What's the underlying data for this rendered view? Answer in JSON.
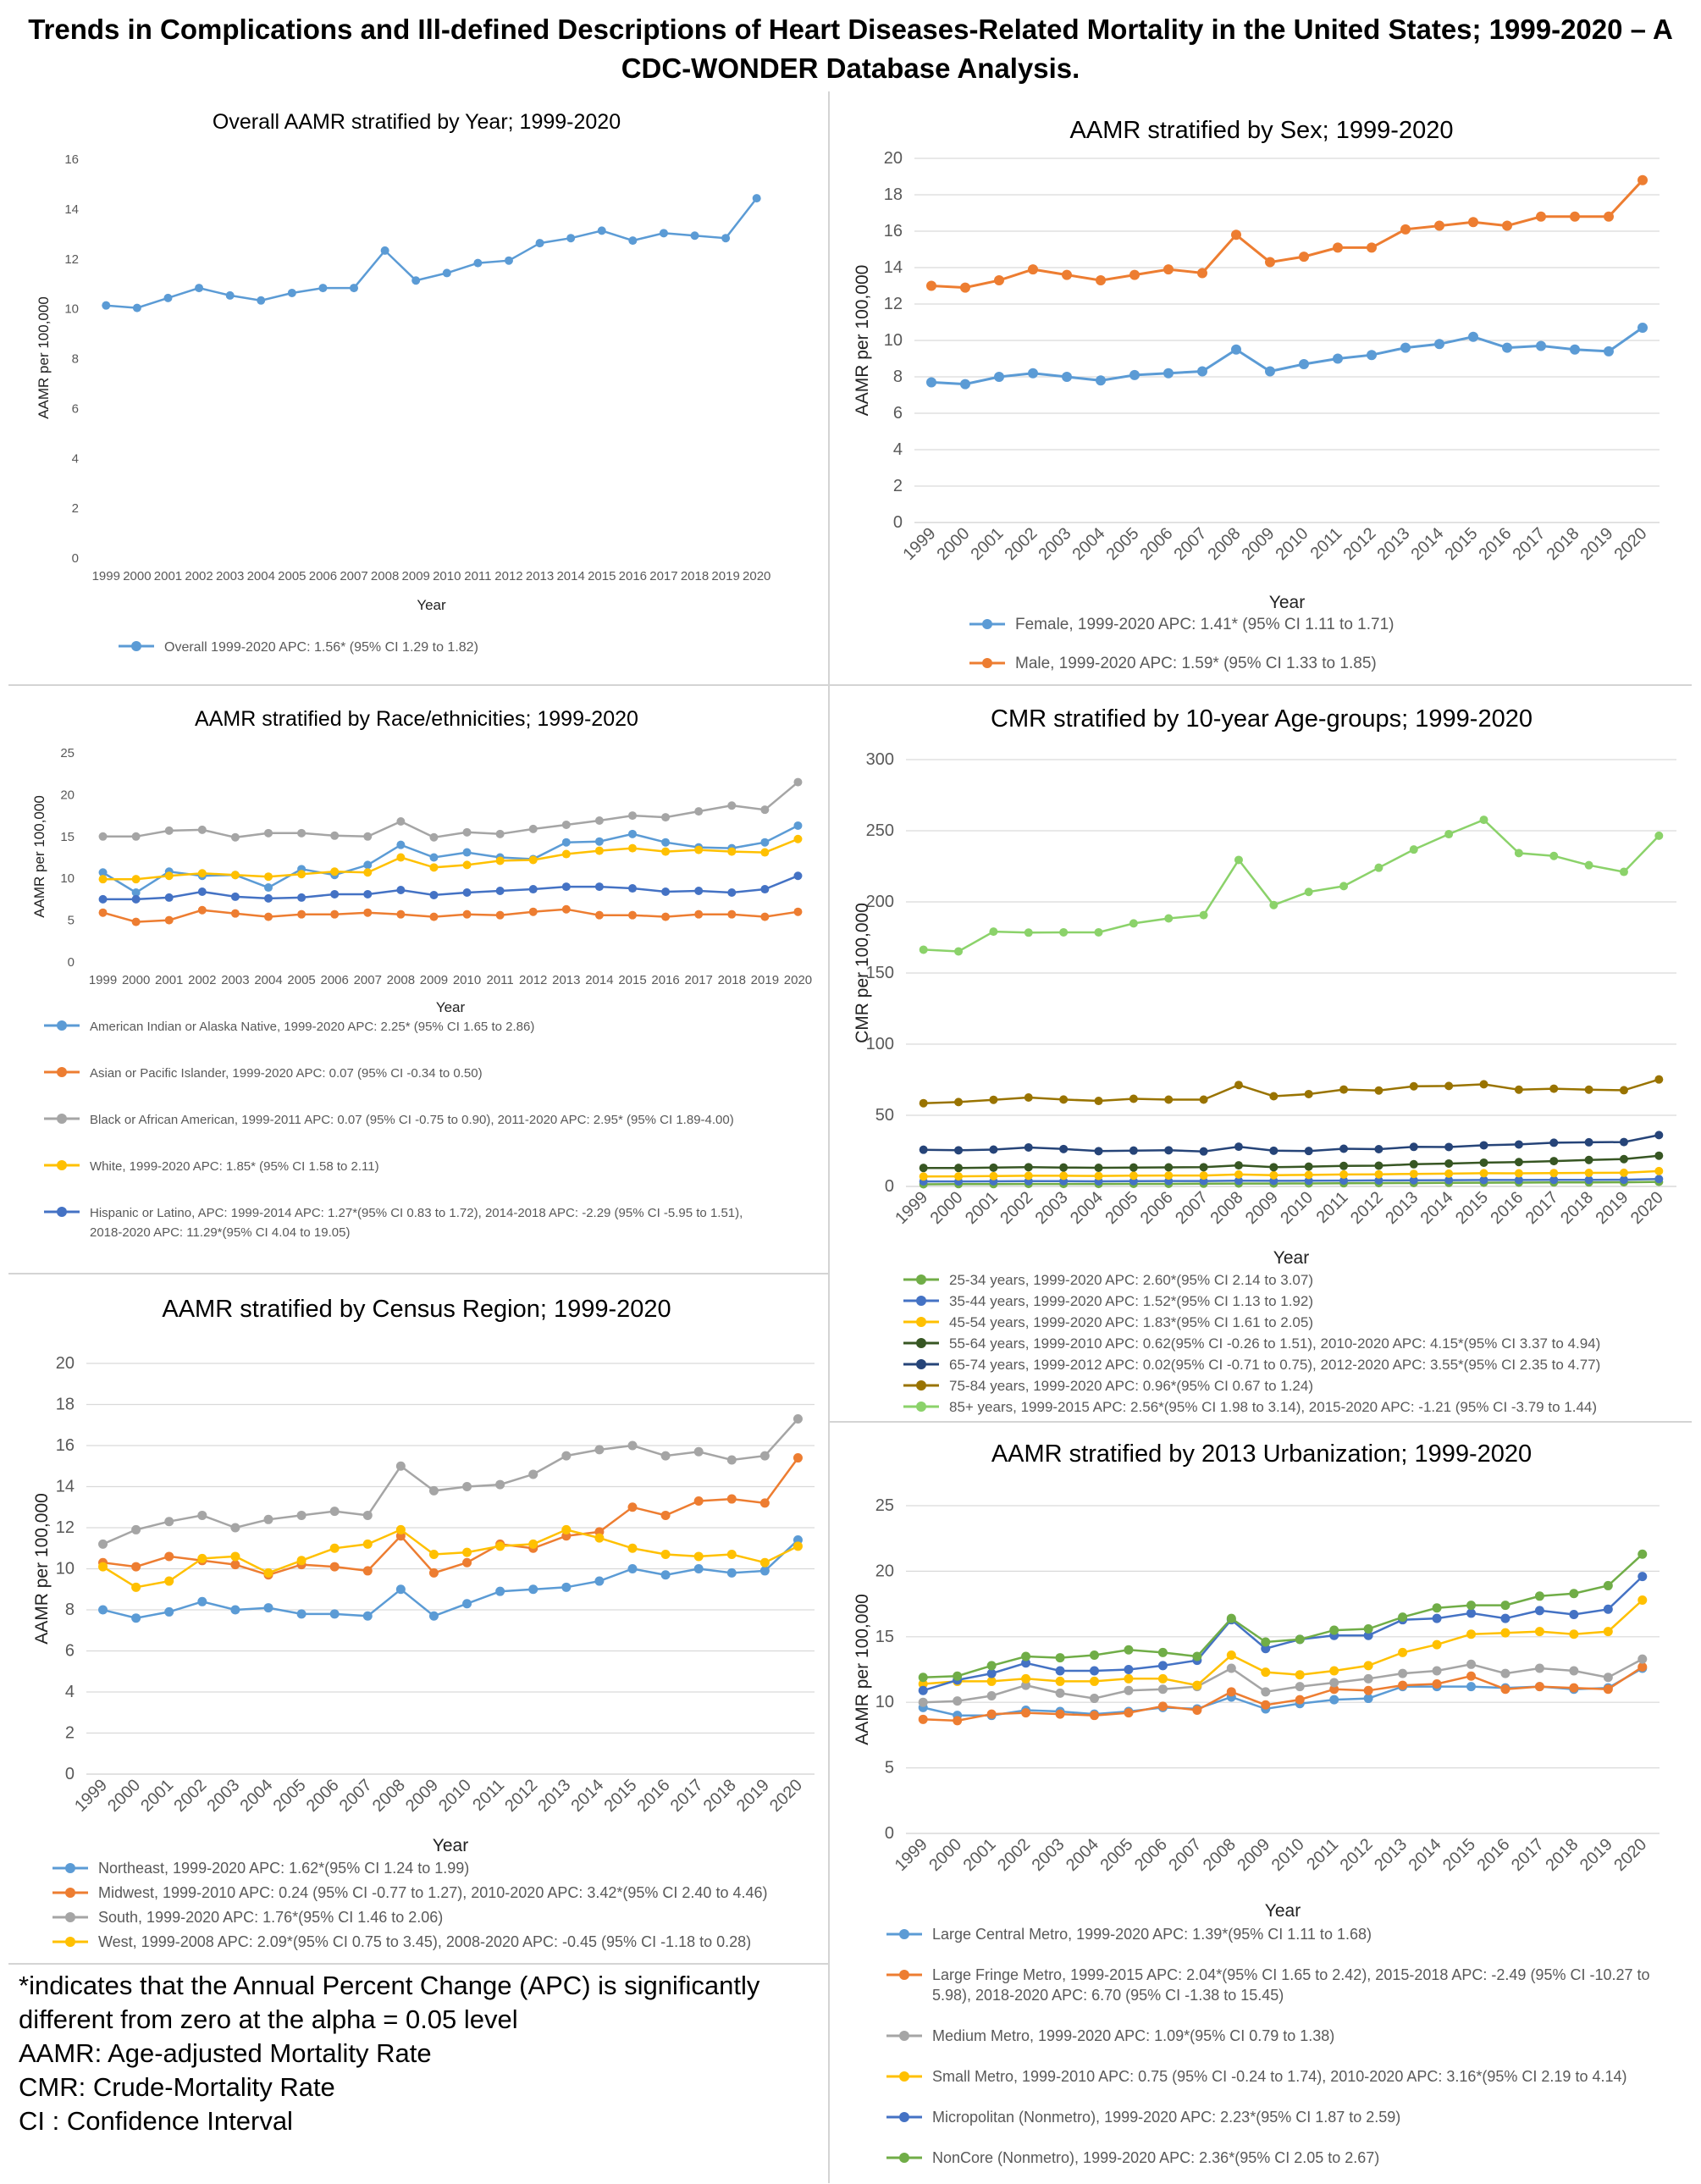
{
  "main_title": [
    "Trends in Complications and Ill-defined Descriptions of Heart Diseases-Related Mortality in the United States; 1999-2020 – A",
    "CDC-WONDER Database Analysis."
  ],
  "colors": {
    "blue": "#5b9bd5",
    "orange": "#ed7d31",
    "gray": "#a5a5a5",
    "gold": "#ffc000",
    "dblue": "#4472c4",
    "green": "#70ad47",
    "dgreen": "#375623",
    "navy": "#264478",
    "brown": "#997300",
    "lgreen": "#8bd26a",
    "grid": "#d9d9d9",
    "text": "#595959"
  },
  "notes": [
    "*indicates that the Annual Percent Change (APC) is significantly",
    "different from zero at the alpha = 0.05 level",
    "AAMR: Age-adjusted Mortality Rate",
    "CMR: Crude-Mortality Rate",
    "CI : Confidence Interval"
  ],
  "chart_data": [
    {
      "id": "overall",
      "type": "line",
      "title": "Overall AAMR stratified by Year; 1999-2020",
      "xlabel": "Year",
      "ylabel": "AAMR per 100,000",
      "ylim": [
        0,
        16
      ],
      "ystep": 2,
      "grid": false,
      "x": [
        "1999",
        "2000",
        "2001",
        "2002",
        "2003",
        "2004",
        "2005",
        "2006",
        "2007",
        "2008",
        "2009",
        "2010",
        "2011",
        "2012",
        "2013",
        "2014",
        "2015",
        "2016",
        "2017",
        "2018",
        "2019",
        "2020"
      ],
      "series": [
        {
          "name": "Overall 1999-2020 APC: 1.56* (95% CI 1.29 to 1.82)",
          "color": "#5b9bd5",
          "values": [
            10.1,
            10.0,
            10.4,
            10.8,
            10.5,
            10.3,
            10.6,
            10.8,
            10.8,
            12.3,
            11.1,
            11.4,
            11.8,
            11.9,
            12.6,
            12.8,
            13.1,
            12.7,
            13.0,
            12.9,
            12.8,
            14.4
          ]
        }
      ]
    },
    {
      "id": "sex",
      "type": "line",
      "title": "AAMR stratified by Sex; 1999-2020",
      "xlabel": "Year",
      "ylabel": "AAMR per 100,000",
      "ylim": [
        0,
        20
      ],
      "ystep": 2,
      "grid": true,
      "x": [
        "1999",
        "2000",
        "2001",
        "2002",
        "2003",
        "2004",
        "2005",
        "2006",
        "2007",
        "2008",
        "2009",
        "2010",
        "2011",
        "2012",
        "2013",
        "2014",
        "2015",
        "2016",
        "2017",
        "2018",
        "2019",
        "2020"
      ],
      "series": [
        {
          "name": "Female, 1999-2020 APC: 1.41* (95% CI 1.11 to 1.71)",
          "color": "#5b9bd5",
          "values": [
            7.7,
            7.6,
            8.0,
            8.2,
            8.0,
            7.8,
            8.1,
            8.2,
            8.3,
            9.5,
            8.3,
            8.7,
            9.0,
            9.2,
            9.6,
            9.8,
            10.2,
            9.6,
            9.7,
            9.5,
            9.4,
            10.7
          ]
        },
        {
          "name": "Male, 1999-2020 APC: 1.59* (95% CI 1.33 to 1.85)",
          "color": "#ed7d31",
          "values": [
            13.0,
            12.9,
            13.3,
            13.9,
            13.6,
            13.3,
            13.6,
            13.9,
            13.7,
            15.8,
            14.3,
            14.6,
            15.1,
            15.1,
            16.1,
            16.3,
            16.5,
            16.3,
            16.8,
            16.8,
            16.8,
            18.8
          ]
        }
      ]
    },
    {
      "id": "race",
      "type": "line",
      "title": "AAMR stratified by Race/ethnicities; 1999-2020",
      "xlabel": "Year",
      "ylabel": "AAMR per 100,000",
      "ylim": [
        0,
        25
      ],
      "ystep": 5,
      "grid": false,
      "x": [
        "1999",
        "2000",
        "2001",
        "2002",
        "2003",
        "2004",
        "2005",
        "2006",
        "2007",
        "2008",
        "2009",
        "2010",
        "2011",
        "2012",
        "2013",
        "2014",
        "2015",
        "2016",
        "2017",
        "2018",
        "2019",
        "2020"
      ],
      "series": [
        {
          "name": "American Indian or Alaska Native, 1999-2020 APC: 2.25* (95% CI 1.65 to 2.86)",
          "color": "#5b9bd5",
          "values": [
            10.6,
            8.2,
            10.7,
            10.2,
            10.3,
            8.8,
            11.0,
            10.3,
            11.5,
            13.9,
            12.4,
            13.0,
            12.4,
            12.2,
            14.2,
            14.3,
            15.2,
            14.2,
            13.6,
            13.5,
            14.2,
            16.2
          ]
        },
        {
          "name": "Asian or Pacific Islander, 1999-2020 APC: 0.07 (95% CI -0.34 to 0.50)",
          "color": "#ed7d31",
          "values": [
            5.8,
            4.7,
            4.9,
            6.1,
            5.7,
            5.3,
            5.6,
            5.6,
            5.8,
            5.6,
            5.3,
            5.6,
            5.5,
            5.9,
            6.2,
            5.5,
            5.5,
            5.3,
            5.6,
            5.6,
            5.3,
            5.9
          ]
        },
        {
          "name": "Black or African American, 1999-2011 APC: 0.07 (95% CI -0.75 to 0.90), 2011-2020 APC: 2.95* (95% CI 1.89-4.00)",
          "color": "#a5a5a5",
          "values": [
            14.9,
            14.9,
            15.6,
            15.7,
            14.8,
            15.3,
            15.3,
            15.0,
            14.9,
            16.7,
            14.8,
            15.4,
            15.2,
            15.8,
            16.3,
            16.8,
            17.4,
            17.2,
            17.9,
            18.6,
            18.1,
            21.4
          ]
        },
        {
          "name": "White, 1999-2020 APC: 1.85* (95% CI 1.58 to 2.11)",
          "color": "#ffc000",
          "values": [
            9.8,
            9.8,
            10.2,
            10.5,
            10.3,
            10.1,
            10.4,
            10.7,
            10.6,
            12.4,
            11.2,
            11.5,
            12.0,
            12.1,
            12.8,
            13.2,
            13.5,
            13.1,
            13.3,
            13.1,
            13.0,
            14.6
          ]
        },
        {
          "name": "Hispanic or Latino, APC: 1999-2014 APC: 1.27*(95% CI 0.83 to 1.72), 2014-2018 APC: -2.29 (95% CI -5.95 to 1.51), 2018-2020 APC: 11.29*(95% CI 4.04 to 19.05)",
          "color": "#4472c4",
          "values": [
            7.4,
            7.4,
            7.6,
            8.3,
            7.7,
            7.5,
            7.6,
            8.0,
            8.0,
            8.5,
            7.9,
            8.2,
            8.4,
            8.6,
            8.9,
            8.9,
            8.7,
            8.3,
            8.4,
            8.2,
            8.6,
            10.2
          ]
        }
      ]
    },
    {
      "id": "age",
      "type": "line",
      "title": "CMR stratified by 10-year Age-groups; 1999-2020",
      "xlabel": "Year",
      "ylabel": "CMR per 100,000",
      "ylim": [
        0,
        300
      ],
      "ystep": 50,
      "grid": true,
      "x": [
        "1999",
        "2000",
        "2001",
        "2002",
        "2003",
        "2004",
        "2005",
        "2006",
        "2007",
        "2008",
        "2009",
        "2010",
        "2011",
        "2012",
        "2013",
        "2014",
        "2015",
        "2016",
        "2017",
        "2018",
        "2019",
        "2020"
      ],
      "series": [
        {
          "name": "25-34 years, 1999-2020 APC: 2.60*(95% CI 2.14 to 3.07)",
          "color": "#70ad47",
          "values": [
            1.5,
            1.6,
            1.6,
            1.7,
            1.7,
            1.7,
            1.8,
            1.8,
            1.9,
            2.0,
            2.0,
            2.1,
            2.2,
            2.3,
            2.4,
            2.5,
            2.6,
            2.7,
            2.8,
            2.8,
            2.9,
            3.2
          ]
        },
        {
          "name": "35-44 years, 1999-2020 APC: 1.52*(95% CI 1.13 to 1.92)",
          "color": "#4472c4",
          "values": [
            3.5,
            3.5,
            3.6,
            3.7,
            3.7,
            3.6,
            3.7,
            3.8,
            3.8,
            4.0,
            3.9,
            4.0,
            4.1,
            4.2,
            4.3,
            4.4,
            4.5,
            4.5,
            4.6,
            4.6,
            4.7,
            5.2
          ]
        },
        {
          "name": "45-54 years, 1999-2020 APC: 1.83*(95% CI 1.61 to 2.05)",
          "color": "#ffc000",
          "values": [
            7.0,
            7.1,
            7.3,
            7.5,
            7.5,
            7.4,
            7.6,
            7.7,
            7.7,
            8.4,
            7.9,
            8.1,
            8.4,
            8.5,
            8.8,
            9.0,
            9.3,
            9.2,
            9.4,
            9.5,
            9.6,
            10.8
          ]
        },
        {
          "name": "55-64 years, 1999-2010 APC: 0.62(95% CI -0.26 to 1.51), 2010-2020 APC: 4.15*(95% CI 3.37 to 4.94)",
          "color": "#375623",
          "values": [
            13.0,
            13.0,
            13.2,
            13.5,
            13.3,
            13.1,
            13.3,
            13.4,
            13.5,
            14.8,
            13.5,
            13.9,
            14.4,
            14.6,
            15.6,
            16.1,
            16.7,
            17.1,
            17.8,
            18.6,
            19.2,
            21.6
          ]
        },
        {
          "name": "65-74 years, 1999-2012 APC: 0.02(95% CI -0.71 to 0.75), 2012-2020 APC: 3.55*(95% CI 2.35 to 4.77)",
          "color": "#264478",
          "values": [
            25.8,
            25.4,
            25.9,
            27.4,
            26.3,
            24.8,
            25.2,
            25.4,
            24.6,
            27.9,
            25.1,
            24.9,
            26.5,
            26.2,
            27.8,
            27.7,
            28.9,
            29.5,
            30.7,
            31.0,
            31.2,
            36.1
          ]
        },
        {
          "name": "75-84 years, 1999-2020 APC: 0.96*(95% CI 0.67 to 1.24)",
          "color": "#997300",
          "values": [
            58.5,
            59.3,
            60.9,
            62.5,
            61.1,
            60.1,
            61.6,
            61.0,
            61.0,
            71.3,
            63.4,
            64.9,
            68.1,
            67.4,
            70.4,
            70.6,
            71.8,
            68.0,
            68.7,
            68.0,
            67.6,
            75.2
          ]
        },
        {
          "name": "85+ years, 1999-2015 APC: 2.56*(95% CI 1.98 to 3.14), 2015-2020 APC: -1.21 (95% CI -3.79 to 1.44)",
          "color": "#8bd26a",
          "values": [
            166.4,
            165.2,
            179.1,
            178.4,
            178.6,
            178.6,
            184.9,
            188.4,
            190.7,
            229.5,
            197.8,
            207.0,
            211.1,
            224.0,
            236.8,
            247.6,
            257.7,
            234.3,
            232.3,
            225.8,
            221.1,
            246.5
          ]
        }
      ]
    },
    {
      "id": "region",
      "type": "line",
      "title": "AAMR stratified by Census Region; 1999-2020",
      "xlabel": "Year",
      "ylabel": "AAMR per 100,000",
      "ylim": [
        0,
        20
      ],
      "ystep": 2,
      "grid": true,
      "x": [
        "1999",
        "2000",
        "2001",
        "2002",
        "2003",
        "2004",
        "2005",
        "2006",
        "2007",
        "2008",
        "2009",
        "2010",
        "2011",
        "2012",
        "2013",
        "2014",
        "2015",
        "2016",
        "2017",
        "2018",
        "2019",
        "2020"
      ],
      "series": [
        {
          "name": "Northeast, 1999-2020 APC: 1.62*(95% CI 1.24 to 1.99)",
          "color": "#5b9bd5",
          "values": [
            8.0,
            7.6,
            7.9,
            8.4,
            8.0,
            8.1,
            7.8,
            7.8,
            7.7,
            9.0,
            7.7,
            8.3,
            8.9,
            9.0,
            9.1,
            9.4,
            10.0,
            9.7,
            10.0,
            9.8,
            9.9,
            11.4
          ]
        },
        {
          "name": "Midwest, 1999-2010 APC: 0.24 (95% CI -0.77 to 1.27), 2010-2020 APC: 3.42*(95% CI 2.40 to 4.46)",
          "color": "#ed7d31",
          "values": [
            10.3,
            10.1,
            10.6,
            10.4,
            10.2,
            9.7,
            10.2,
            10.1,
            9.9,
            11.6,
            9.8,
            10.3,
            11.2,
            11.0,
            11.6,
            11.8,
            13.0,
            12.6,
            13.3,
            13.4,
            13.2,
            15.4
          ]
        },
        {
          "name": "South, 1999-2020 APC: 1.76*(95% CI 1.46 to 2.06)",
          "color": "#a5a5a5",
          "values": [
            11.2,
            11.9,
            12.3,
            12.6,
            12.0,
            12.4,
            12.6,
            12.8,
            12.6,
            15.0,
            13.8,
            14.0,
            14.1,
            14.6,
            15.5,
            15.8,
            16.0,
            15.5,
            15.7,
            15.3,
            15.5,
            17.3
          ]
        },
        {
          "name": "West, 1999-2008 APC: 2.09*(95% CI 0.75 to 3.45), 2008-2020 APC: -0.45 (95% CI -1.18 to 0.28)",
          "color": "#ffc000",
          "values": [
            10.1,
            9.1,
            9.4,
            10.5,
            10.6,
            9.8,
            10.4,
            11.0,
            11.2,
            11.9,
            10.7,
            10.8,
            11.1,
            11.2,
            11.9,
            11.5,
            11.0,
            10.7,
            10.6,
            10.7,
            10.3,
            11.1
          ]
        }
      ]
    },
    {
      "id": "urban",
      "type": "line",
      "title": "AAMR stratified by 2013 Urbanization; 1999-2020",
      "xlabel": "Year",
      "ylabel": "AAMR per 100,000",
      "ylim": [
        0,
        25
      ],
      "ystep": 5,
      "grid": true,
      "x": [
        "1999",
        "2000",
        "2001",
        "2002",
        "2003",
        "2004",
        "2005",
        "2006",
        "2007",
        "2008",
        "2009",
        "2010",
        "2011",
        "2012",
        "2013",
        "2014",
        "2015",
        "2016",
        "2017",
        "2018",
        "2019",
        "2020"
      ],
      "series": [
        {
          "name": "Large Central Metro, 1999-2020 APC: 1.39*(95% CI 1.11 to 1.68)",
          "color": "#5b9bd5",
          "values": [
            9.6,
            9.0,
            9.0,
            9.4,
            9.3,
            9.1,
            9.3,
            9.6,
            9.5,
            10.4,
            9.5,
            9.9,
            10.2,
            10.3,
            11.2,
            11.2,
            11.2,
            11.1,
            11.2,
            11.0,
            11.1,
            12.6
          ]
        },
        {
          "name": "Large Fringe Metro, 1999-2015 APC: 2.04*(95% CI 1.65 to 2.42), 2015-2018 APC: -2.49 (95% CI -10.27 to 5.98), 2018-2020 APC: 6.70 (95% CI -1.38 to 15.45)",
          "color": "#ed7d31",
          "values": [
            8.7,
            8.6,
            9.1,
            9.2,
            9.1,
            9.0,
            9.2,
            9.7,
            9.4,
            10.8,
            9.8,
            10.2,
            11.0,
            10.9,
            11.3,
            11.4,
            12.0,
            11.0,
            11.2,
            11.1,
            11.0,
            12.7
          ]
        },
        {
          "name": "Medium Metro, 1999-2020 APC: 1.09*(95% CI 0.79 to 1.38)",
          "color": "#a5a5a5",
          "values": [
            10.0,
            10.1,
            10.5,
            11.3,
            10.7,
            10.3,
            10.9,
            11.0,
            11.2,
            12.6,
            10.8,
            11.2,
            11.5,
            11.8,
            12.2,
            12.4,
            12.9,
            12.2,
            12.6,
            12.4,
            11.9,
            13.3
          ]
        },
        {
          "name": "Small Metro, 1999-2010 APC: 0.75 (95% CI -0.24 to 1.74), 2010-2020 APC: 3.16*(95% CI 2.19 to 4.14)",
          "color": "#ffc000",
          "values": [
            11.4,
            11.6,
            11.6,
            11.8,
            11.6,
            11.6,
            11.8,
            11.8,
            11.3,
            13.6,
            12.3,
            12.1,
            12.4,
            12.8,
            13.8,
            14.4,
            15.2,
            15.3,
            15.4,
            15.2,
            15.4,
            17.8
          ]
        },
        {
          "name": "Micropolitan (Nonmetro), 1999-2020 APC: 2.23*(95% CI 1.87 to 2.59)",
          "color": "#4472c4",
          "values": [
            10.9,
            11.7,
            12.2,
            13.0,
            12.4,
            12.4,
            12.5,
            12.8,
            13.2,
            16.3,
            14.1,
            14.8,
            15.1,
            15.1,
            16.3,
            16.4,
            16.8,
            16.4,
            17.0,
            16.7,
            17.1,
            19.6
          ]
        },
        {
          "name": "NonCore (Nonmetro), 1999-2020 APC: 2.36*(95% CI 2.05 to 2.67)",
          "color": "#70ad47",
          "values": [
            11.9,
            12.0,
            12.8,
            13.5,
            13.4,
            13.6,
            14.0,
            13.8,
            13.5,
            16.4,
            14.6,
            14.8,
            15.5,
            15.6,
            16.5,
            17.2,
            17.4,
            17.4,
            18.1,
            18.3,
            18.9,
            21.3
          ]
        }
      ]
    }
  ]
}
